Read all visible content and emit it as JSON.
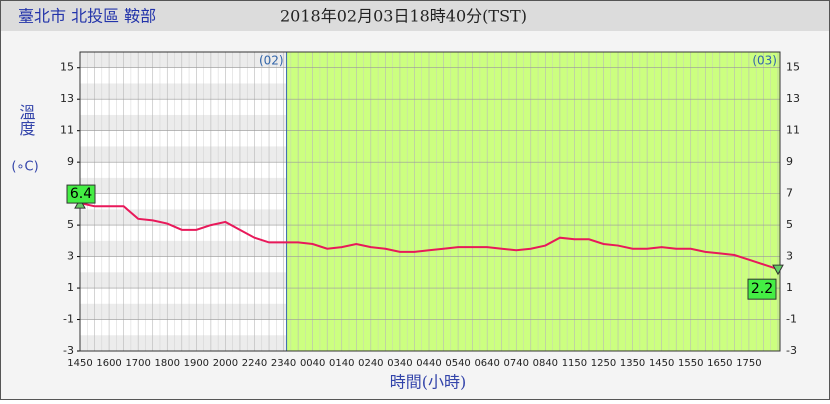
{
  "chart_data": {
    "type": "line",
    "title": "臺北市 北投區 鞍部",
    "subtitle": "2018年02月03日18時40分(TST)",
    "y_label": "溫度",
    "y_unit": "(∘C)",
    "x_label": "時間(小時)",
    "day_labels": [
      "(02)",
      "(03)"
    ],
    "categories": [
      "1450",
      null,
      "1600",
      null,
      "1700",
      null,
      "1800",
      null,
      "1900",
      null,
      "2000",
      null,
      "2240",
      null,
      "2340",
      null,
      "0040",
      null,
      "0140",
      null,
      "0240",
      null,
      "0340",
      null,
      "0440",
      null,
      "0540",
      null,
      "0640",
      null,
      "0740",
      null,
      "0840",
      null,
      "1150",
      null,
      "1250",
      null,
      "1350",
      null,
      "1450",
      null,
      "1550",
      null,
      "1650",
      null,
      "1750",
      null,
      null
    ],
    "series": [
      {
        "name": "溫度",
        "color": "#e8195a",
        "values": [
          6.4,
          6.2,
          6.2,
          6.2,
          5.4,
          5.3,
          5.1,
          4.7,
          4.7,
          5.0,
          5.2,
          4.7,
          4.2,
          3.9,
          3.9,
          3.9,
          3.8,
          3.5,
          3.6,
          3.8,
          3.6,
          3.5,
          3.3,
          3.3,
          3.4,
          3.5,
          3.6,
          3.6,
          3.6,
          3.5,
          3.4,
          3.5,
          3.7,
          4.2,
          4.1,
          4.1,
          3.8,
          3.7,
          3.5,
          3.5,
          3.6,
          3.5,
          3.5,
          3.3,
          3.2,
          3.1,
          2.8,
          2.5,
          2.2
        ]
      }
    ],
    "ylim": [
      -3,
      16
    ],
    "yticks": [
      -3,
      -1,
      1,
      3,
      5,
      7,
      9,
      11,
      13,
      15
    ],
    "grid": true
  }
}
